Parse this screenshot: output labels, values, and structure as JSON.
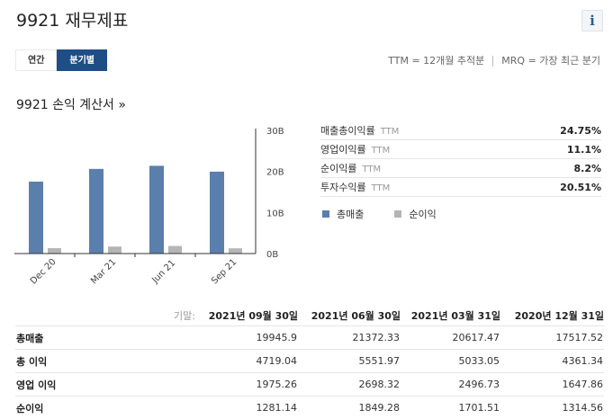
{
  "page": {
    "title": "9921 재무제표",
    "info_icon": "i",
    "tabs": [
      {
        "label": "연간",
        "active": false
      },
      {
        "label": "분기별",
        "active": true
      }
    ],
    "ttm_note": "TTM = 12개월 추적분",
    "mrq_note": "MRQ = 가장 최근 분기",
    "section_title": "9921 손익 계산서 »"
  },
  "ratios": [
    {
      "label": "매출총이익률",
      "ttm": "TTM",
      "value": "24.75%"
    },
    {
      "label": "영업이익률",
      "ttm": "TTM",
      "value": "11.1%"
    },
    {
      "label": "순이익률",
      "ttm": "TTM",
      "value": "8.2%"
    },
    {
      "label": "투자수익률",
      "ttm": "TTM",
      "value": "20.51%"
    }
  ],
  "chart_legend": [
    {
      "label": "총매출",
      "color": "#5b7fac"
    },
    {
      "label": "순이익",
      "color": "#b5b5b5"
    }
  ],
  "chart_data": {
    "type": "bar",
    "categories": [
      "Dec 20",
      "Mar 21",
      "Jun 21",
      "Sep 21"
    ],
    "series": [
      {
        "name": "총매출",
        "color": "#5b7fac",
        "values": [
          17517.52,
          20617.47,
          21372.33,
          19945.9
        ]
      },
      {
        "name": "순이익",
        "color": "#b5b5b5",
        "values": [
          1314.56,
          1701.51,
          1849.28,
          1281.14
        ]
      }
    ],
    "yticks": [
      "30B",
      "20B",
      "10B",
      "0B"
    ],
    "ylim": [
      0,
      30000
    ],
    "grid": false,
    "legend": "right"
  },
  "table": {
    "period_label": "기말:",
    "columns": [
      "2021년 09월 30일",
      "2021년 06월 30일",
      "2021년 03월 31일",
      "2020년 12월 31일"
    ],
    "rows": [
      {
        "label": "총매출",
        "values": [
          "19945.9",
          "21372.33",
          "20617.47",
          "17517.52"
        ]
      },
      {
        "label": "총 이익",
        "values": [
          "4719.04",
          "5551.97",
          "5033.05",
          "4361.34"
        ]
      },
      {
        "label": "영업 이익",
        "values": [
          "1975.26",
          "2698.32",
          "2496.73",
          "1647.86"
        ]
      },
      {
        "label": "순이익",
        "values": [
          "1281.14",
          "1849.28",
          "1701.51",
          "1314.56"
        ]
      }
    ]
  }
}
